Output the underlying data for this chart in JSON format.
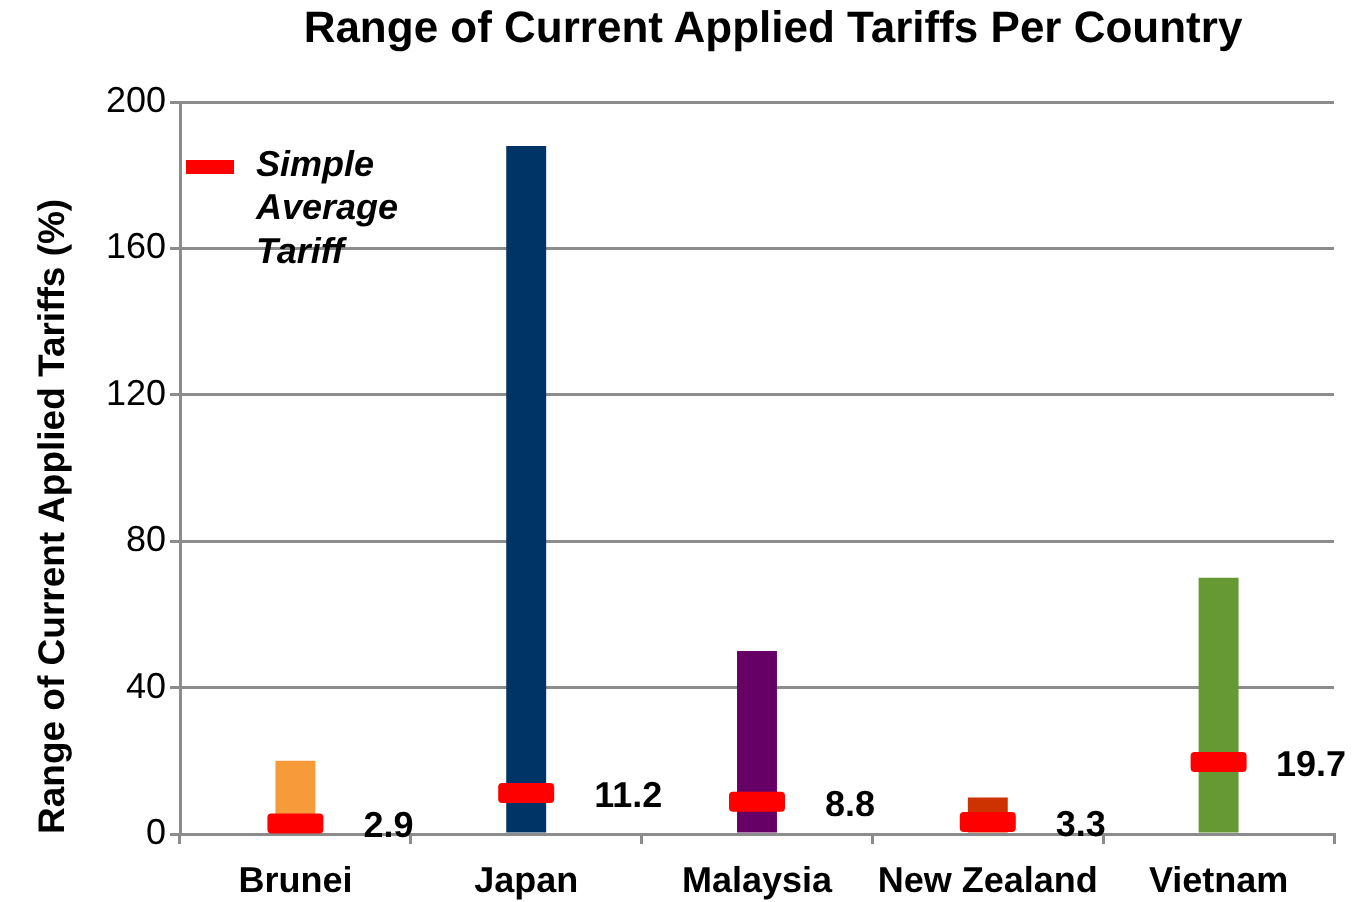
{
  "chart_data": {
    "type": "bar",
    "title": "Range of Current Applied Tariffs Per Country",
    "ylabel": "Range of Current Applied Tariffs (%)",
    "categories": [
      "Brunei",
      "Japan",
      "Malaysia",
      "New Zealand",
      "Vietnam"
    ],
    "series": [
      {
        "colors": [
          "#f79a3a",
          "#003366",
          "#660066",
          "#cc3300",
          "#669933"
        ],
        "values": [
          20,
          188,
          50,
          10,
          70
        ]
      },
      {
        "type": "scatter",
        "name": "Simple Average Tariff",
        "color": "#ff0000",
        "x": [
          "Brunei",
          "Japan",
          "Malaysia",
          "New Zealand",
          "Vietnam"
        ],
        "values": [
          2.9,
          11.2,
          8.8,
          3.3,
          19.7
        ],
        "value_labels": [
          "2.9",
          "11.2",
          "8.8",
          "3.3",
          "19.7"
        ]
      }
    ],
    "ylim": [
      0,
      200
    ],
    "yticks": [
      0,
      40,
      80,
      120,
      160,
      200
    ],
    "grid": "y",
    "legend": "top left"
  }
}
